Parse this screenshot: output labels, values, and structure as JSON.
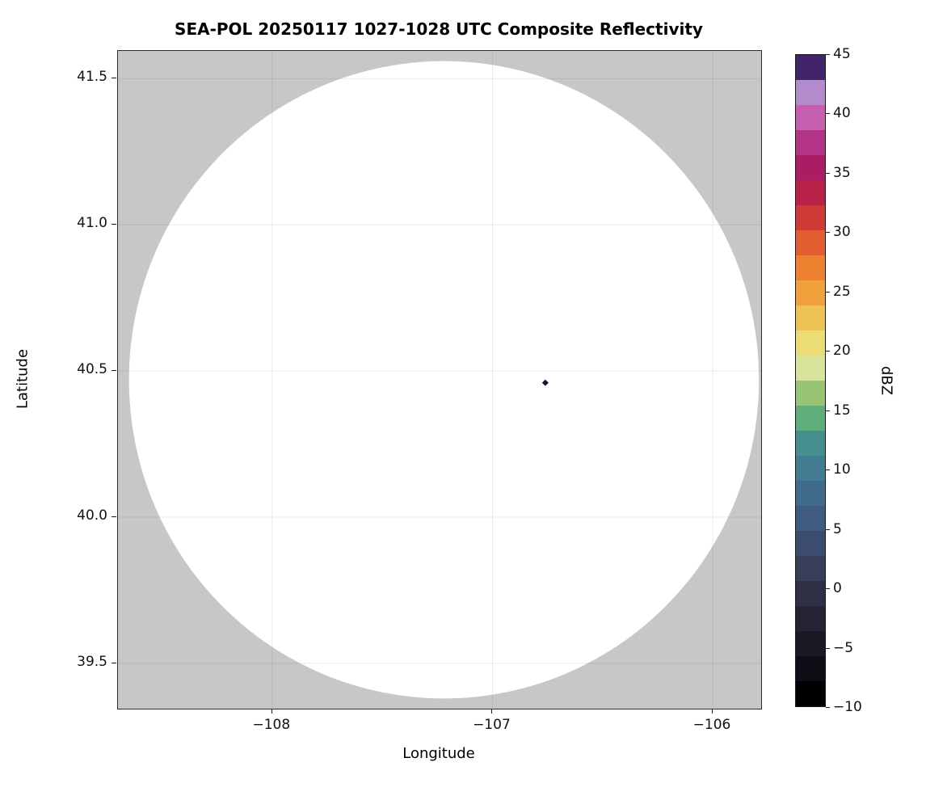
{
  "figure": {
    "background_color": "#ffffff"
  },
  "chart_data": {
    "type": "heatmap",
    "title": "SEA-POL 20250117 1027-1028 UTC Composite Reflectivity",
    "xlabel": "Longitude",
    "ylabel": "Latitude",
    "xlim": [
      -108.7,
      -105.78
    ],
    "ylim": [
      39.345,
      41.595
    ],
    "grid": true,
    "grid_color": "rgba(0,0,0,0.08)",
    "plot_background_color": "#c7c7c7",
    "no_echo_color": "#ffffff",
    "x_ticks": [
      {
        "value": -108,
        "label": "−108"
      },
      {
        "value": -107,
        "label": "−107"
      },
      {
        "value": -106,
        "label": "−106"
      }
    ],
    "y_ticks": [
      {
        "value": 39.5,
        "label": "39.5"
      },
      {
        "value": 40.0,
        "label": "40.0"
      },
      {
        "value": 40.5,
        "label": "40.5"
      },
      {
        "value": 41.0,
        "label": "41.0"
      },
      {
        "value": 41.5,
        "label": "41.5"
      }
    ],
    "coverage_circle": {
      "center_lon": -107.22,
      "center_lat": 40.47,
      "radius_deg_lon": 1.43,
      "radius_deg_lat": 1.09,
      "fill": "#ffffff",
      "note": "white disk = radar coverage area with no detectable echo; gray = outside radar range"
    },
    "echoes": [
      {
        "lon": -106.76,
        "lat": 40.46,
        "color": "#1c1033",
        "shape": "diamond",
        "note": "single small dark echo pixel"
      }
    ],
    "colorbar": {
      "label": "dBZ",
      "min": -10,
      "max": 45,
      "ticks": [
        {
          "value": 45,
          "label": "45"
        },
        {
          "value": 40,
          "label": "40"
        },
        {
          "value": 35,
          "label": "35"
        },
        {
          "value": 30,
          "label": "30"
        },
        {
          "value": 25,
          "label": "25"
        },
        {
          "value": 20,
          "label": "20"
        },
        {
          "value": 15,
          "label": "15"
        },
        {
          "value": 10,
          "label": "10"
        },
        {
          "value": 5,
          "label": "5"
        },
        {
          "value": 0,
          "label": "0"
        },
        {
          "value": -5,
          "label": "−5"
        },
        {
          "value": -10,
          "label": "−10"
        }
      ],
      "colors_bottom_to_top": [
        "#010103",
        "#0e0d15",
        "#1a1924",
        "#252434",
        "#2f3045",
        "#373e5a",
        "#3c4c6e",
        "#3f5b7f",
        "#406b8b",
        "#417c92",
        "#45908f",
        "#5fae79",
        "#97c573",
        "#d9e39c",
        "#ecdc75",
        "#eec253",
        "#f0a13c",
        "#ee8130",
        "#e25e31",
        "#d03b38",
        "#ba2349",
        "#aa1c63",
        "#b23387",
        "#c75fae",
        "#b48bcd",
        "#41246a"
      ]
    }
  }
}
